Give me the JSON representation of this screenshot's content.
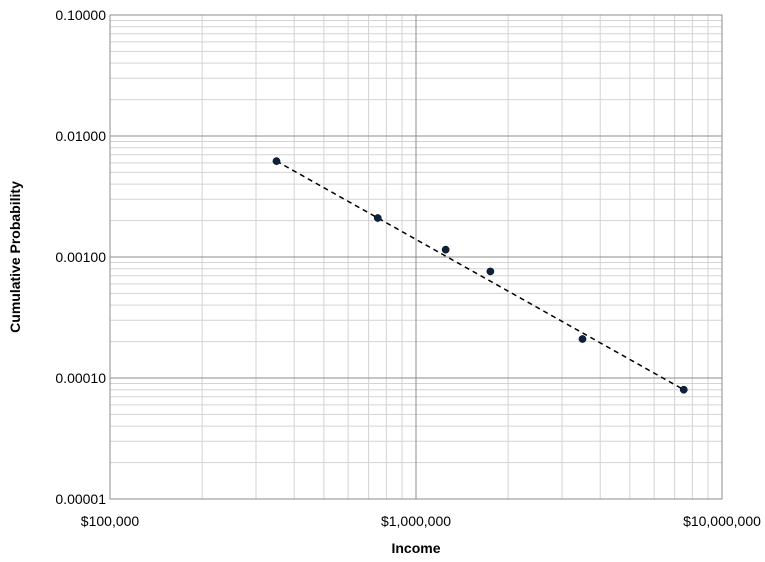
{
  "chart_data": {
    "type": "scatter",
    "title": "",
    "xlabel": "Income",
    "ylabel": "Cumulative Probability",
    "x_scale": "log",
    "y_scale": "log",
    "xlim": [
      100000,
      10000000
    ],
    "ylim": [
      1e-05,
      0.1
    ],
    "x_ticks": [
      100000,
      1000000,
      10000000
    ],
    "x_tick_labels": [
      "$100,000",
      "$1,000,000",
      "$10,000,000"
    ],
    "y_ticks": [
      1e-05,
      0.0001,
      0.001,
      0.01,
      0.1
    ],
    "y_tick_labels": [
      "0.00001",
      "0.00010",
      "0.00100",
      "0.01000",
      "0.10000"
    ],
    "grid": true,
    "minor_grid": true,
    "legend": "none",
    "series": [
      {
        "marker_color": "#0b2340",
        "points": [
          {
            "x": 350000,
            "y": 0.0062
          },
          {
            "x": 750000,
            "y": 0.0021
          },
          {
            "x": 1250000,
            "y": 0.00115
          },
          {
            "x": 1750000,
            "y": 0.00076
          },
          {
            "x": 3500000,
            "y": 0.00021
          },
          {
            "x": 7500000,
            "y": 8e-05
          }
        ]
      }
    ],
    "trendline": {
      "style": "dashed",
      "color": "#000000",
      "points": [
        {
          "x": 350000,
          "y": 0.0062
        },
        {
          "x": 7500000,
          "y": 8e-05
        }
      ]
    }
  }
}
